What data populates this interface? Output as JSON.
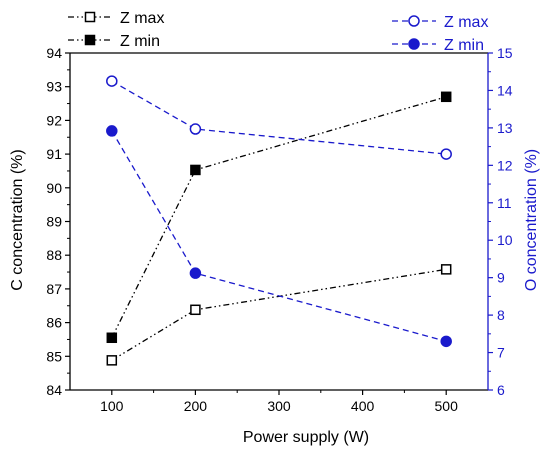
{
  "chart_data": {
    "type": "line",
    "x": [
      100,
      200,
      500
    ],
    "xlabel": "Power supply (W)",
    "xlim": [
      50,
      550
    ],
    "x_ticks": [
      100,
      200,
      300,
      400,
      500
    ],
    "ylabel_left": "C concentration (%)",
    "ylim_left": [
      84,
      94
    ],
    "y_ticks_left": [
      84,
      85,
      86,
      87,
      88,
      89,
      90,
      91,
      92,
      93,
      94
    ],
    "ylabel_right": "O concentration (%)",
    "ylim_right": [
      6,
      15
    ],
    "y_ticks_right": [
      6,
      7,
      8,
      9,
      10,
      11,
      12,
      13,
      14,
      15
    ],
    "grid": false,
    "series": [
      {
        "name": "Z max",
        "axis": "left",
        "values": [
          84.88,
          86.38,
          87.58
        ],
        "color": "#000000",
        "marker": "open-square",
        "line": "dash-dot-dot"
      },
      {
        "name": "Z min",
        "axis": "left",
        "values": [
          85.55,
          90.53,
          92.7
        ],
        "color": "#000000",
        "marker": "filled-square",
        "line": "dash-dot-dot"
      },
      {
        "name": "Z max",
        "axis": "right",
        "values": [
          14.25,
          12.97,
          12.3
        ],
        "color": "#1a1acc",
        "marker": "open-circle",
        "line": "dashed"
      },
      {
        "name": "Z min",
        "axis": "right",
        "values": [
          12.92,
          9.12,
          7.3
        ],
        "color": "#1a1acc",
        "marker": "filled-circle",
        "line": "dashed"
      }
    ],
    "legend_left": "top-left, above plot",
    "legend_right": "top-right, above plot"
  }
}
